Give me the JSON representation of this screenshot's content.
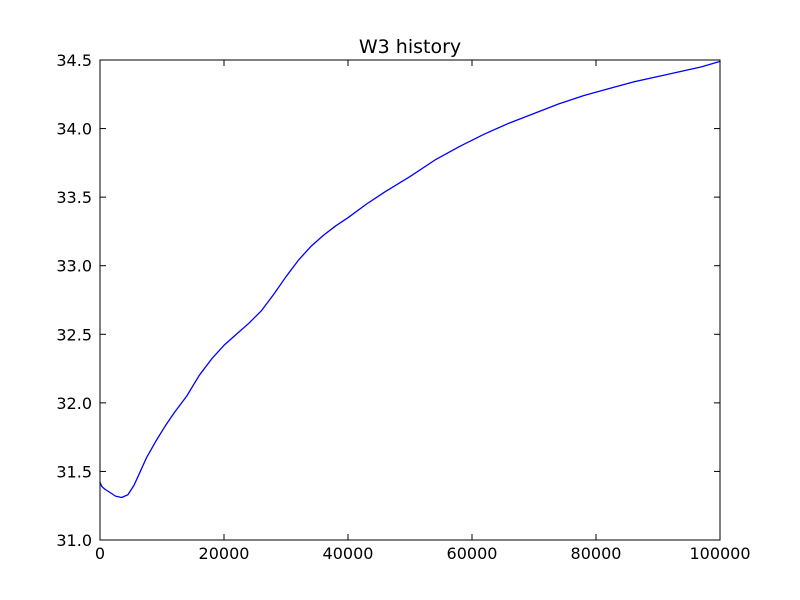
{
  "chart_data": {
    "type": "line",
    "title": "W3 history",
    "xlabel": "",
    "ylabel": "",
    "xlim": [
      0,
      100000
    ],
    "ylim": [
      31.0,
      34.5
    ],
    "grid": false,
    "legend": "none",
    "x_ticks": [
      0,
      20000,
      40000,
      60000,
      80000,
      100000
    ],
    "x_tick_labels": [
      "0",
      "20000",
      "40000",
      "60000",
      "80000",
      "100000"
    ],
    "y_ticks": [
      31.0,
      31.5,
      32.0,
      32.5,
      33.0,
      33.5,
      34.0,
      34.5
    ],
    "y_tick_labels": [
      "31.0",
      "31.5",
      "32.0",
      "32.5",
      "33.0",
      "33.5",
      "34.0",
      "34.5"
    ],
    "series": [
      {
        "color": "#0000ff",
        "x": [
          0,
          300,
          800,
          1500,
          2500,
          3500,
          4500,
          5500,
          6500,
          7500,
          9000,
          10500,
          12000,
          14000,
          16000,
          18000,
          20000,
          22000,
          24000,
          26000,
          28000,
          30000,
          32000,
          34000,
          36000,
          38000,
          40000,
          43000,
          46000,
          50000,
          54000,
          58000,
          62000,
          66000,
          70000,
          74000,
          78000,
          82000,
          86000,
          90000,
          94000,
          97000,
          100000
        ],
        "y": [
          31.42,
          31.39,
          31.37,
          31.35,
          31.32,
          31.31,
          31.33,
          31.4,
          31.5,
          31.6,
          31.72,
          31.83,
          31.93,
          32.05,
          32.2,
          32.32,
          32.42,
          32.5,
          32.58,
          32.67,
          32.79,
          32.92,
          33.04,
          33.14,
          33.22,
          33.29,
          33.35,
          33.45,
          33.54,
          33.65,
          33.77,
          33.87,
          33.96,
          34.04,
          34.11,
          34.18,
          34.24,
          34.29,
          34.34,
          34.38,
          34.42,
          34.45,
          34.49
        ]
      }
    ]
  }
}
